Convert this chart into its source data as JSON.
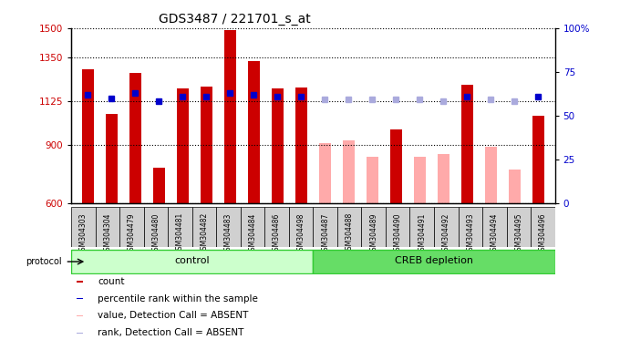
{
  "title": "GDS3487 / 221701_s_at",
  "samples": [
    "GSM304303",
    "GSM304304",
    "GSM304479",
    "GSM304480",
    "GSM304481",
    "GSM304482",
    "GSM304483",
    "GSM304484",
    "GSM304486",
    "GSM304498",
    "GSM304487",
    "GSM304488",
    "GSM304489",
    "GSM304490",
    "GSM304491",
    "GSM304492",
    "GSM304493",
    "GSM304494",
    "GSM304495",
    "GSM304496"
  ],
  "count_values": [
    1290,
    1060,
    1270,
    780,
    1190,
    1200,
    1490,
    1330,
    1190,
    1195,
    null,
    null,
    null,
    980,
    null,
    null,
    1210,
    null,
    null,
    1050
  ],
  "count_absent_values": [
    null,
    null,
    null,
    null,
    null,
    null,
    null,
    null,
    null,
    null,
    910,
    920,
    840,
    null,
    840,
    850,
    null,
    890,
    770,
    null
  ],
  "percentile_rank": [
    62,
    60,
    63,
    58,
    61,
    61,
    63,
    62,
    61,
    61,
    null,
    null,
    null,
    null,
    null,
    null,
    61,
    null,
    null,
    61
  ],
  "percentile_rank_absent": [
    null,
    null,
    null,
    null,
    null,
    null,
    null,
    null,
    null,
    null,
    59,
    59,
    59,
    59,
    59,
    58,
    null,
    59,
    58,
    null
  ],
  "groups": [
    {
      "label": "control",
      "start": 0,
      "end": 9,
      "color_light": "#ccffcc",
      "color_dark": "#33cc33"
    },
    {
      "label": "CREB depletion",
      "start": 10,
      "end": 19,
      "color_light": "#66dd66",
      "color_dark": "#33cc33"
    }
  ],
  "ylim_left": [
    600,
    1500
  ],
  "ylim_right": [
    0,
    100
  ],
  "yticks_left": [
    600,
    900,
    1125,
    1350,
    1500
  ],
  "yticks_right": [
    0,
    25,
    50,
    75,
    100
  ],
  "color_count": "#cc0000",
  "color_count_absent": "#ffaaaa",
  "color_rank": "#0000cc",
  "color_rank_absent": "#aaaadd",
  "legend_items": [
    {
      "label": "count",
      "color": "#cc0000"
    },
    {
      "label": "percentile rank within the sample",
      "color": "#0000cc"
    },
    {
      "label": "value, Detection Call = ABSENT",
      "color": "#ffaaaa"
    },
    {
      "label": "rank, Detection Call = ABSENT",
      "color": "#aaaadd"
    }
  ]
}
